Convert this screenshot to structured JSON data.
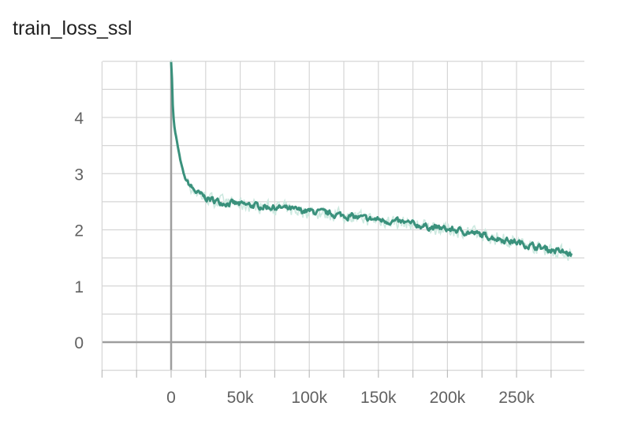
{
  "chart_data": {
    "type": "line",
    "title": "train_loss_ssl",
    "xlabel": "",
    "ylabel": "",
    "xlim": [
      -50000,
      300000
    ],
    "ylim": [
      -0.5,
      5
    ],
    "xticks": [
      0,
      50000,
      100000,
      150000,
      200000,
      250000
    ],
    "xtick_labels": [
      "0",
      "50k",
      "100k",
      "150k",
      "200k",
      "250k"
    ],
    "yticks": [
      0,
      1,
      2,
      3,
      4
    ],
    "ytick_labels": [
      "0",
      "1",
      "2",
      "3",
      "4"
    ],
    "grid": true,
    "colors": {
      "smoothed": "#3a917c",
      "raw": "#cde9e0",
      "grid": "#d6d6d6",
      "axis": "#9e9e9e"
    },
    "series": [
      {
        "style": "smoothed",
        "x": [
          0,
          500,
          1000,
          2000,
          3000,
          4000,
          5000,
          6000,
          7000,
          8000,
          9000,
          10000,
          12000,
          14000,
          16000,
          18000,
          20000,
          25000,
          30000,
          35000,
          40000,
          45000,
          50000,
          60000,
          70000,
          80000,
          90000,
          100000,
          110000,
          120000,
          130000,
          140000,
          150000,
          160000,
          170000,
          180000,
          190000,
          200000,
          210000,
          220000,
          230000,
          240000,
          250000,
          260000,
          270000,
          280000,
          290000
        ],
        "y": [
          5.0,
          4.8,
          4.3,
          3.9,
          3.72,
          3.6,
          3.45,
          3.32,
          3.2,
          3.1,
          3.0,
          2.92,
          2.84,
          2.78,
          2.72,
          2.68,
          2.64,
          2.57,
          2.53,
          2.5,
          2.48,
          2.47,
          2.45,
          2.43,
          2.41,
          2.39,
          2.35,
          2.33,
          2.3,
          2.27,
          2.24,
          2.2,
          2.18,
          2.15,
          2.12,
          2.08,
          2.04,
          2.01,
          1.98,
          1.93,
          1.88,
          1.83,
          1.78,
          1.72,
          1.67,
          1.62,
          1.56
        ]
      }
    ]
  }
}
